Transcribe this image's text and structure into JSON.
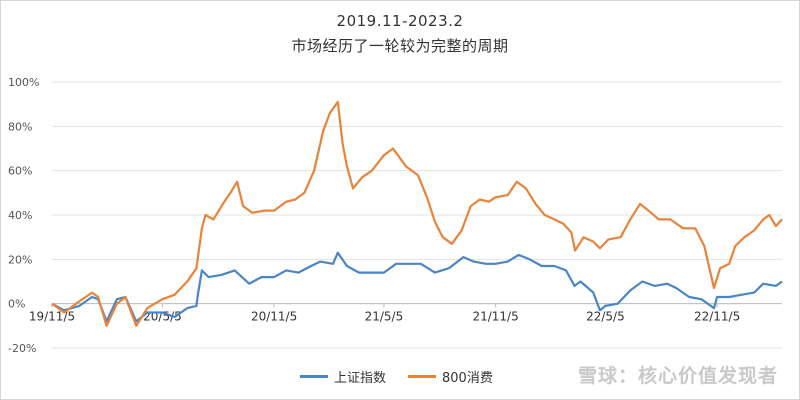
{
  "chart_data": {
    "type": "line",
    "title_line1": "2019.11-2023.2",
    "title_line2": "市场经历了一轮较为完整的周期",
    "y_ticks": [
      "100%",
      "80%",
      "60%",
      "40%",
      "20%",
      "0%",
      "-20%"
    ],
    "y_values": [
      100,
      80,
      60,
      40,
      20,
      0,
      -20
    ],
    "ylim": [
      -20,
      100
    ],
    "x_ticks": [
      "19/11/5",
      "20/5/5",
      "20/11/5",
      "21/5/5",
      "21/11/5",
      "22/5/5",
      "22/11/5"
    ],
    "x_range": [
      "2019-11-05",
      "2023-02-20"
    ],
    "grid": "horizontal",
    "legend_position": "bottom-center",
    "series": [
      {
        "name": "上证指数",
        "color": "#4a86c5",
        "points": [
          [
            "2019-11-05",
            0
          ],
          [
            "2019-11-25",
            -3
          ],
          [
            "2019-12-20",
            -1
          ],
          [
            "2020-01-10",
            3
          ],
          [
            "2020-01-20",
            2
          ],
          [
            "2020-02-03",
            -8
          ],
          [
            "2020-02-20",
            2
          ],
          [
            "2020-03-05",
            3
          ],
          [
            "2020-03-23",
            -8
          ],
          [
            "2020-04-10",
            -4
          ],
          [
            "2020-05-05",
            -4
          ],
          [
            "2020-05-25",
            -6
          ],
          [
            "2020-06-15",
            -2
          ],
          [
            "2020-06-30",
            -1
          ],
          [
            "2020-07-03",
            5
          ],
          [
            "2020-07-09",
            15
          ],
          [
            "2020-07-20",
            12
          ],
          [
            "2020-08-10",
            13
          ],
          [
            "2020-09-01",
            15
          ],
          [
            "2020-09-25",
            9
          ],
          [
            "2020-10-15",
            12
          ],
          [
            "2020-11-05",
            12
          ],
          [
            "2020-11-25",
            15
          ],
          [
            "2020-12-15",
            14
          ],
          [
            "2021-01-05",
            17
          ],
          [
            "2021-01-20",
            19
          ],
          [
            "2021-02-10",
            18
          ],
          [
            "2021-02-18",
            23
          ],
          [
            "2021-03-05",
            17
          ],
          [
            "2021-03-25",
            14
          ],
          [
            "2021-04-15",
            14
          ],
          [
            "2021-05-05",
            14
          ],
          [
            "2021-05-25",
            18
          ],
          [
            "2021-06-15",
            18
          ],
          [
            "2021-07-05",
            18
          ],
          [
            "2021-07-28",
            14
          ],
          [
            "2021-08-20",
            16
          ],
          [
            "2021-09-13",
            21
          ],
          [
            "2021-09-30",
            19
          ],
          [
            "2021-10-20",
            18
          ],
          [
            "2021-11-05",
            18
          ],
          [
            "2021-11-25",
            19
          ],
          [
            "2021-12-13",
            22
          ],
          [
            "2021-12-31",
            20
          ],
          [
            "2022-01-20",
            17
          ],
          [
            "2022-02-10",
            17
          ],
          [
            "2022-03-01",
            15
          ],
          [
            "2022-03-15",
            8
          ],
          [
            "2022-03-25",
            10
          ],
          [
            "2022-04-15",
            5
          ],
          [
            "2022-04-26",
            -3
          ],
          [
            "2022-05-05",
            -1
          ],
          [
            "2022-05-25",
            0
          ],
          [
            "2022-06-15",
            6
          ],
          [
            "2022-07-05",
            10
          ],
          [
            "2022-07-25",
            8
          ],
          [
            "2022-08-15",
            9
          ],
          [
            "2022-08-30",
            7
          ],
          [
            "2022-09-20",
            3
          ],
          [
            "2022-10-10",
            2
          ],
          [
            "2022-10-31",
            -2
          ],
          [
            "2022-11-05",
            3
          ],
          [
            "2022-11-25",
            3
          ],
          [
            "2022-12-15",
            4
          ],
          [
            "2023-01-05",
            5
          ],
          [
            "2023-01-20",
            9
          ],
          [
            "2023-02-10",
            8
          ],
          [
            "2023-02-20",
            10
          ]
        ]
      },
      {
        "name": "800消费",
        "color": "#e8833a",
        "points": [
          [
            "2019-11-05",
            0
          ],
          [
            "2019-11-25",
            -4
          ],
          [
            "2019-12-20",
            1
          ],
          [
            "2020-01-10",
            5
          ],
          [
            "2020-01-20",
            3
          ],
          [
            "2020-02-03",
            -10
          ],
          [
            "2020-02-20",
            0
          ],
          [
            "2020-03-05",
            3
          ],
          [
            "2020-03-23",
            -10
          ],
          [
            "2020-04-10",
            -2
          ],
          [
            "2020-05-05",
            2
          ],
          [
            "2020-05-25",
            4
          ],
          [
            "2020-06-15",
            10
          ],
          [
            "2020-06-30",
            16
          ],
          [
            "2020-07-09",
            34
          ],
          [
            "2020-07-15",
            40
          ],
          [
            "2020-07-28",
            38
          ],
          [
            "2020-08-15",
            46
          ],
          [
            "2020-08-25",
            50
          ],
          [
            "2020-09-05",
            55
          ],
          [
            "2020-09-15",
            44
          ],
          [
            "2020-09-30",
            41
          ],
          [
            "2020-10-20",
            42
          ],
          [
            "2020-11-05",
            42
          ],
          [
            "2020-11-25",
            46
          ],
          [
            "2020-12-10",
            47
          ],
          [
            "2020-12-25",
            50
          ],
          [
            "2021-01-10",
            60
          ],
          [
            "2021-01-25",
            78
          ],
          [
            "2021-02-05",
            86
          ],
          [
            "2021-02-18",
            91
          ],
          [
            "2021-02-26",
            72
          ],
          [
            "2021-03-05",
            62
          ],
          [
            "2021-03-15",
            52
          ],
          [
            "2021-03-30",
            57
          ],
          [
            "2021-04-15",
            60
          ],
          [
            "2021-05-05",
            67
          ],
          [
            "2021-05-20",
            70
          ],
          [
            "2021-06-10",
            62
          ],
          [
            "2021-06-30",
            58
          ],
          [
            "2021-07-15",
            48
          ],
          [
            "2021-07-28",
            37
          ],
          [
            "2021-08-10",
            30
          ],
          [
            "2021-08-25",
            27
          ],
          [
            "2021-09-10",
            33
          ],
          [
            "2021-09-25",
            44
          ],
          [
            "2021-10-10",
            47
          ],
          [
            "2021-10-25",
            46
          ],
          [
            "2021-11-05",
            48
          ],
          [
            "2021-11-25",
            49
          ],
          [
            "2021-12-10",
            55
          ],
          [
            "2021-12-25",
            52
          ],
          [
            "2022-01-10",
            45
          ],
          [
            "2022-01-25",
            40
          ],
          [
            "2022-02-10",
            38
          ],
          [
            "2022-02-25",
            36
          ],
          [
            "2022-03-10",
            32
          ],
          [
            "2022-03-16",
            24
          ],
          [
            "2022-03-30",
            30
          ],
          [
            "2022-04-15",
            28
          ],
          [
            "2022-04-26",
            25
          ],
          [
            "2022-05-10",
            29
          ],
          [
            "2022-05-30",
            30
          ],
          [
            "2022-06-15",
            38
          ],
          [
            "2022-07-01",
            45
          ],
          [
            "2022-07-15",
            42
          ],
          [
            "2022-08-01",
            38
          ],
          [
            "2022-08-20",
            38
          ],
          [
            "2022-09-10",
            34
          ],
          [
            "2022-09-30",
            34
          ],
          [
            "2022-10-15",
            26
          ],
          [
            "2022-10-25",
            14
          ],
          [
            "2022-10-31",
            7
          ],
          [
            "2022-11-10",
            16
          ],
          [
            "2022-11-25",
            18
          ],
          [
            "2022-12-05",
            26
          ],
          [
            "2022-12-20",
            30
          ],
          [
            "2023-01-05",
            33
          ],
          [
            "2023-01-20",
            38
          ],
          [
            "2023-01-30",
            40
          ],
          [
            "2023-02-10",
            35
          ],
          [
            "2023-02-20",
            38
          ]
        ]
      }
    ]
  },
  "watermark": "雪球：核心价值发现者"
}
